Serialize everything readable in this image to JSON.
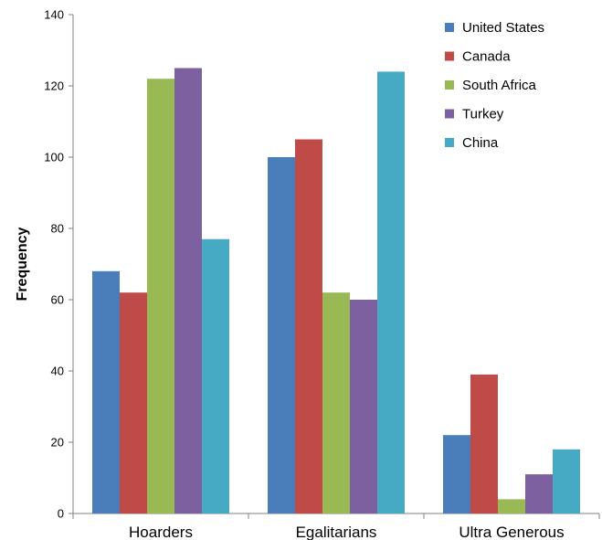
{
  "chart_data": {
    "type": "bar",
    "title": "",
    "xlabel": "",
    "ylabel": "Frequency",
    "ylim": [
      0,
      140
    ],
    "yticks": [
      0,
      20,
      40,
      60,
      80,
      100,
      120,
      140
    ],
    "grid": false,
    "legend_position": "top-right",
    "categories": [
      "Hoarders",
      "Egalitarians",
      "Ultra Generous"
    ],
    "series": [
      {
        "name": "United States",
        "color": "#4a7ebb",
        "values": [
          68,
          100,
          22
        ]
      },
      {
        "name": "Canada",
        "color": "#be4b48",
        "values": [
          62,
          105,
          39
        ]
      },
      {
        "name": "South Africa",
        "color": "#98b954",
        "values": [
          122,
          62,
          4
        ]
      },
      {
        "name": "Turkey",
        "color": "#7d60a0",
        "values": [
          125,
          60,
          11
        ]
      },
      {
        "name": "China",
        "color": "#46aac4",
        "values": [
          77,
          124,
          18
        ]
      }
    ]
  }
}
